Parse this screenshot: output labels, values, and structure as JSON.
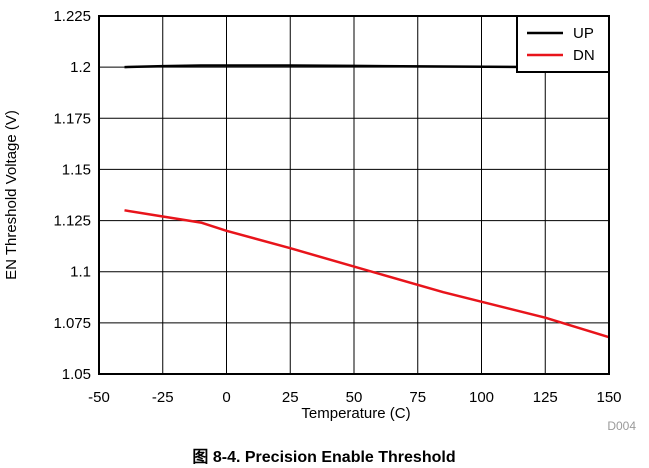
{
  "chart_data": {
    "type": "line",
    "xlabel": "Temperature (C)",
    "ylabel": "EN Threshold Voltage (V)",
    "xlim": [
      -50,
      150
    ],
    "ylim": [
      1.05,
      1.225
    ],
    "xticks": [
      -50,
      -25,
      0,
      25,
      50,
      75,
      100,
      125,
      150
    ],
    "xtick_labels": [
      "-50",
      "-25",
      "0",
      "25",
      "50",
      "75",
      "100",
      "125",
      "150"
    ],
    "yticks": [
      1.05,
      1.075,
      1.1,
      1.125,
      1.15,
      1.175,
      1.2,
      1.225
    ],
    "ytick_labels": [
      "1.05",
      "1.075",
      "1.1",
      "1.125",
      "1.15",
      "1.175",
      "1.2",
      "1.225"
    ],
    "grid": true,
    "legend_position": "top-right",
    "series": [
      {
        "name": "UP",
        "color": "#000000",
        "x": [
          -40,
          -25,
          -10,
          0,
          25,
          50,
          85,
          125,
          150
        ],
        "y": [
          1.2,
          1.2005,
          1.2008,
          1.2008,
          1.2008,
          1.2006,
          1.2003,
          1.2,
          1.2
        ]
      },
      {
        "name": "DN",
        "color": "#e8141b",
        "x": [
          -40,
          -25,
          -10,
          0,
          25,
          50,
          85,
          125,
          150
        ],
        "y": [
          1.13,
          1.127,
          1.124,
          1.12,
          1.1115,
          1.1025,
          1.09,
          1.0775,
          1.068
        ]
      }
    ]
  },
  "figure_code": "D004",
  "caption": "图 8-4. Precision Enable Threshold"
}
